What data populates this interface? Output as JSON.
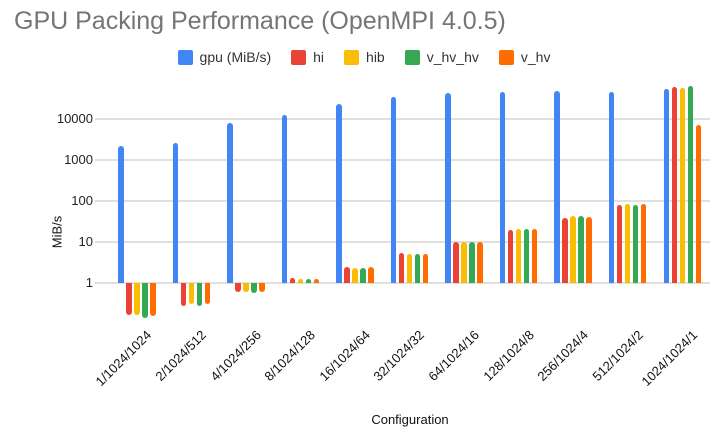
{
  "title": "GPU Packing Performance (OpenMPI 4.0.5)",
  "chart_data": {
    "type": "bar",
    "title": "GPU Packing Performance (OpenMPI 4.0.5)",
    "xlabel": "Configuration",
    "ylabel": "MiB/s",
    "y_scale": "log",
    "y_ticks": [
      1,
      10,
      100,
      1000,
      10000
    ],
    "ylim": [
      0.1,
      70000
    ],
    "grid": true,
    "legend_position": "top",
    "categories": [
      "1/1024/1024",
      "2/1024/512",
      "4/1024/256",
      "8/1024/128",
      "16/1024/64",
      "32/1024/32",
      "64/1024/16",
      "128/1024/8",
      "256/1024/4",
      "512/1024/2",
      "1024/1024/1"
    ],
    "series": [
      {
        "name": "gpu (MiB/s)",
        "color": "#4285F4",
        "values": [
          2200,
          2600,
          8000,
          12500,
          23000,
          34000,
          44000,
          45000,
          49000,
          46000,
          55000
        ]
      },
      {
        "name": "hi",
        "color": "#EA4335",
        "values": [
          0.17,
          0.28,
          0.62,
          1.3,
          2.5,
          5.3,
          9.8,
          20,
          38,
          78,
          61000
        ]
      },
      {
        "name": "hib",
        "color": "#FBBC04",
        "values": [
          0.17,
          0.3,
          0.6,
          1.25,
          2.3,
          5.0,
          10,
          21,
          42,
          85,
          57000
        ]
      },
      {
        "name": "v_hv_hv",
        "color": "#34A853",
        "values": [
          0.14,
          0.28,
          0.58,
          1.25,
          2.3,
          5.0,
          10,
          21,
          42,
          82,
          63000
        ]
      },
      {
        "name": "v_hv",
        "color": "#FF6D01",
        "values": [
          0.16,
          0.3,
          0.62,
          1.25,
          2.4,
          5.0,
          10,
          21,
          41,
          83,
          7200
        ]
      }
    ]
  }
}
